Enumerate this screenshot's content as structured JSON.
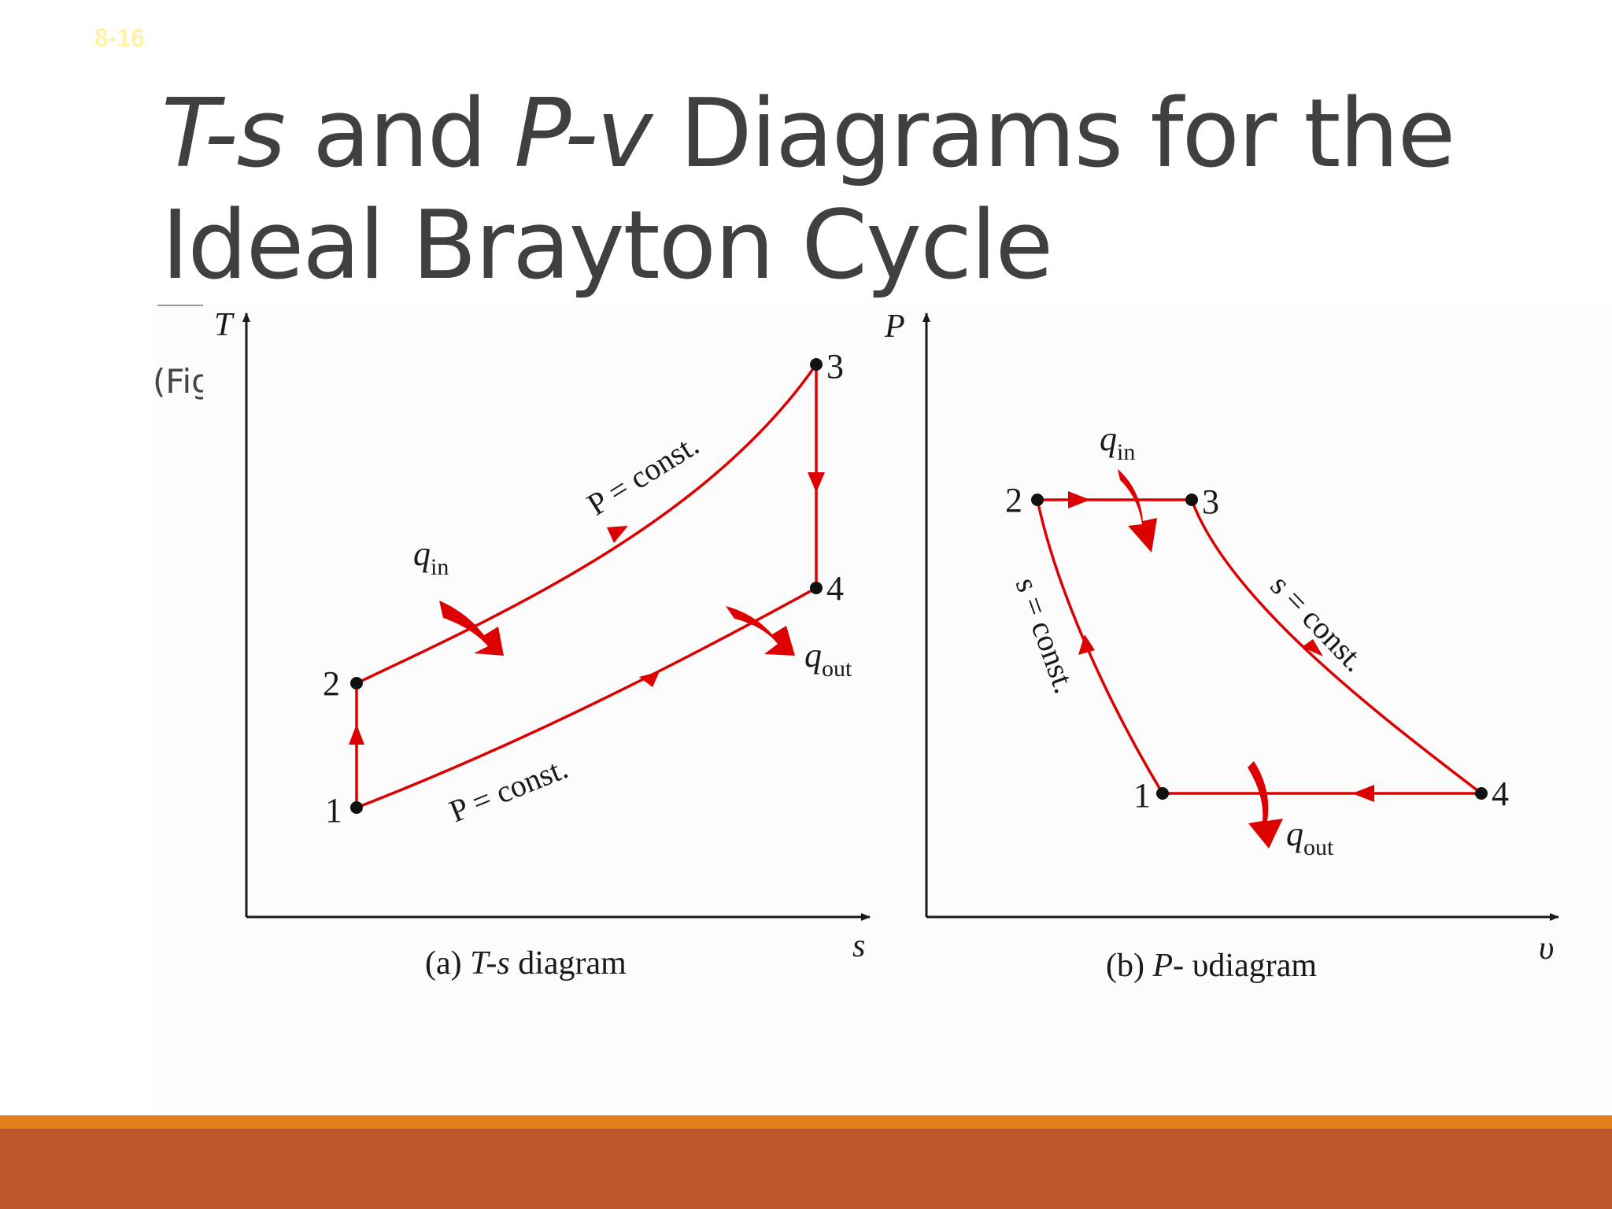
{
  "slide": {
    "number": "8-16",
    "title": {
      "part1": "T-s",
      "part2": " and ",
      "part3": "P-v",
      "part4": " Diagrams for the Ideal Brayton Cycle"
    },
    "caption_fragment": "(Fig"
  },
  "colors": {
    "cycle": "#dd0000",
    "title": "#404040",
    "footer_bar": "#bd582c",
    "footer_accent": "#e3801e",
    "slide_number": "#fff3a8"
  },
  "ts_diagram": {
    "y_axis": "T",
    "x_axis": "s",
    "caption_a": "(a) ",
    "caption_b": "T-s",
    "caption_c": " diagram",
    "points": [
      "1",
      "2",
      "3",
      "4"
    ],
    "label_upper": "P = const.",
    "label_lower": "P = const.",
    "q_in": "q",
    "q_in_sub": "in",
    "q_out": "q",
    "q_out_sub": "out"
  },
  "pv_diagram": {
    "y_axis": "P",
    "x_axis": "υ",
    "caption_a": "(b) ",
    "caption_b": "P-",
    "caption_c": " υdiagram",
    "points": [
      "1",
      "2",
      "3",
      "4"
    ],
    "label_left": "s = const.",
    "label_right": "s = const.",
    "q_in": "q",
    "q_in_sub": "in",
    "q_out": "q",
    "q_out_sub": "out"
  }
}
